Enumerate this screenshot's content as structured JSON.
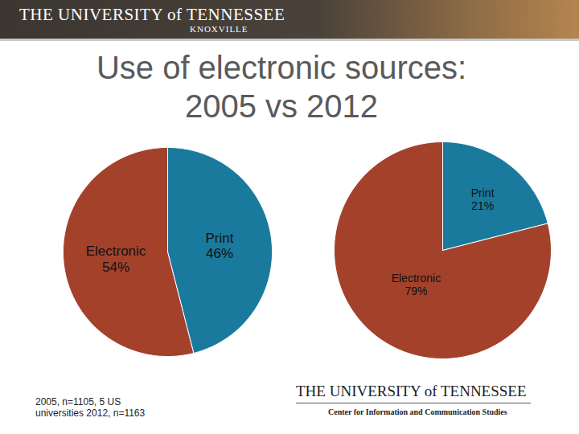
{
  "header": {
    "title": "THE UNIVERSITY of TENNESSEE",
    "subtitle": "KNOXVILLE"
  },
  "title": "Use of electronic sources: 2005 vs 2012",
  "chart_data": [
    {
      "type": "pie",
      "categories": [
        "Print",
        "Electronic"
      ],
      "values": [
        46,
        54
      ],
      "value_labels": [
        "46%",
        "54%"
      ],
      "colors": [
        "#1a7a9e",
        "#a4412b"
      ],
      "data_labels": true
    },
    {
      "type": "pie",
      "categories": [
        "Print",
        "Electronic"
      ],
      "values": [
        21,
        79
      ],
      "value_labels": [
        "21%",
        "79%"
      ],
      "colors": [
        "#1a7a9e",
        "#a4412b"
      ],
      "data_labels": true
    }
  ],
  "caption": "2005, n=1105, 5 US universities 2012, n=1163",
  "footer": {
    "logo": "THE UNIVERSITY of TENNESSEE",
    "subtitle": "Center for Information and Communication Studies"
  }
}
